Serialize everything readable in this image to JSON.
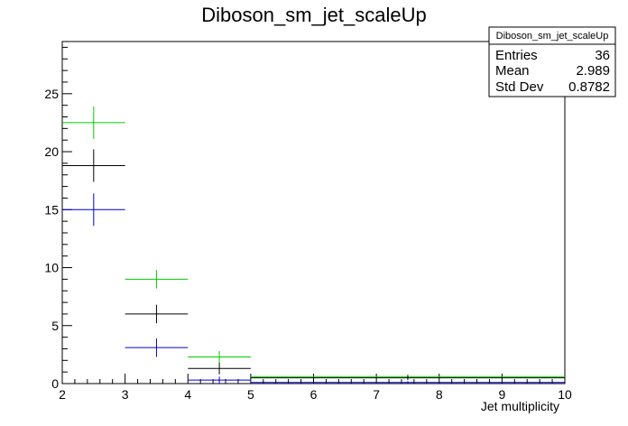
{
  "chart_data": {
    "type": "scatter",
    "title": "Diboson_sm_jet_scaleUp",
    "xlabel": "Jet multiplicity",
    "ylabel": "",
    "xlim": [
      2,
      10
    ],
    "ylim": [
      0,
      29.5
    ],
    "x_ticks": [
      2,
      3,
      4,
      5,
      6,
      7,
      8,
      9,
      10
    ],
    "y_ticks": [
      0,
      5,
      10,
      15,
      20,
      25
    ],
    "series": [
      {
        "color": "#00cc00",
        "bins": [
          {
            "xlo": 2,
            "xhi": 3,
            "y": 22.5,
            "err": 1.4
          },
          {
            "xlo": 3,
            "xhi": 4,
            "y": 9.0,
            "err": 0.8
          },
          {
            "xlo": 4,
            "xhi": 5,
            "y": 2.3,
            "err": 0.5
          },
          {
            "xlo": 5,
            "xhi": 10,
            "y": 0.6,
            "err": 0.2
          }
        ]
      },
      {
        "color": "#000000",
        "bins": [
          {
            "xlo": 2,
            "xhi": 3,
            "y": 18.8,
            "err": 1.4
          },
          {
            "xlo": 3,
            "xhi": 4,
            "y": 6.0,
            "err": 0.8
          },
          {
            "xlo": 4,
            "xhi": 5,
            "y": 1.3,
            "err": 0.5
          },
          {
            "xlo": 5,
            "xhi": 10,
            "y": 0.5,
            "err": 0.2
          }
        ]
      },
      {
        "color": "#0000cc",
        "bins": [
          {
            "xlo": 2,
            "xhi": 3,
            "y": 15.0,
            "err": 1.4
          },
          {
            "xlo": 3,
            "xhi": 4,
            "y": 3.1,
            "err": 0.8
          },
          {
            "xlo": 4,
            "xhi": 5,
            "y": 0.3,
            "err": 0.3
          },
          {
            "xlo": 5,
            "xhi": 10,
            "y": 0.1,
            "err": 0.1
          }
        ]
      }
    ],
    "stats_box": {
      "title": "Diboson_sm_jet_scaleUp",
      "rows": [
        {
          "label": "Entries",
          "value": "36"
        },
        {
          "label": "Mean",
          "value": "2.989"
        },
        {
          "label": "Std Dev",
          "value": "0.8782"
        }
      ]
    }
  }
}
